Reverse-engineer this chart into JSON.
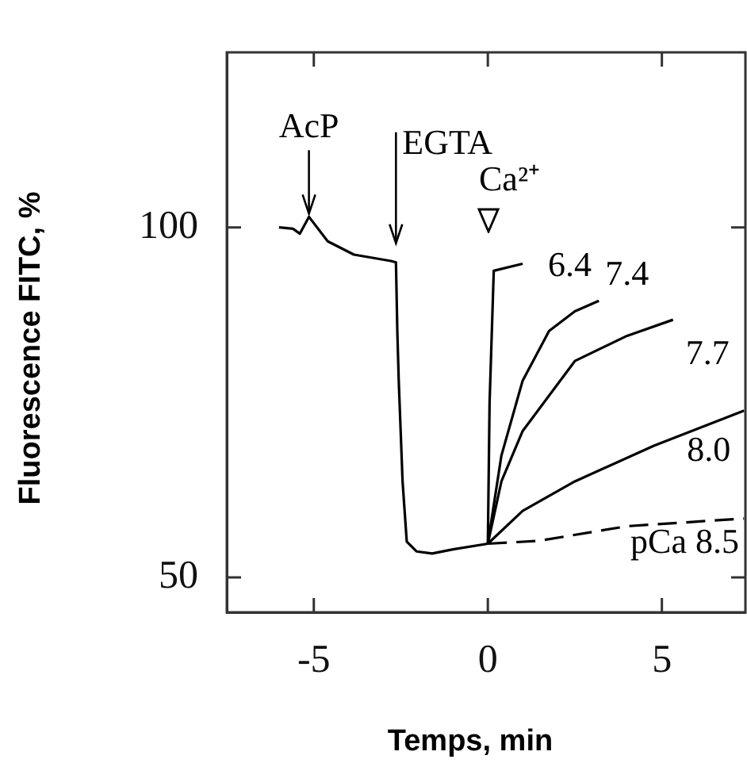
{
  "chart_data": {
    "type": "line",
    "xlabel": "Temps, min",
    "ylabel": "Fluorescence FITC, %",
    "xlim": [
      -7.5,
      7.4
    ],
    "ylim": [
      45,
      125
    ],
    "xticks": [
      -5,
      0,
      5
    ],
    "yticks": [
      50,
      100
    ],
    "grid": false,
    "legend": false,
    "marker": "none",
    "series": [
      {
        "color": "#000000",
        "x": [
          -6,
          -5.6,
          -5.4,
          -5.14,
          -4.6,
          -3.85,
          -2.79,
          -2.64,
          -2.6,
          -2.56,
          -2.45,
          -2.33,
          -2.05,
          -1.6,
          -1,
          0
        ],
        "values": [
          100,
          99.8,
          99.1,
          101.5,
          98,
          96.1,
          95.2,
          95,
          85,
          78.1,
          63.7,
          55.1,
          53.7,
          53.4,
          54,
          54.8
        ]
      },
      {
        "name": "6.4",
        "color": "#000000",
        "x": [
          0,
          0.05,
          0.17,
          1.0
        ],
        "values": [
          54.8,
          75,
          93.8,
          94.8
        ]
      },
      {
        "name": "7.4",
        "color": "#000000",
        "x": [
          0,
          0.39,
          1.0,
          1.76,
          2.5,
          3.19
        ],
        "values": [
          54.8,
          67.4,
          78.1,
          85.2,
          88,
          89.5
        ]
      },
      {
        "name": "7.7",
        "color": "#000000",
        "x": [
          0,
          0.39,
          1.0,
          2.5,
          4,
          5.32
        ],
        "values": [
          54.8,
          63.7,
          70.9,
          80.9,
          84.5,
          86.8
        ]
      },
      {
        "name": "8.0",
        "color": "#000000",
        "x": [
          0,
          1.0,
          2.5,
          4.77,
          7.36
        ],
        "values": [
          54.8,
          59.5,
          63.7,
          68.8,
          73.8
        ]
      },
      {
        "name": "pCa 8.5",
        "color": "#000000",
        "line_style": "dashed",
        "x": [
          0,
          1.45,
          4.0,
          7.36
        ],
        "values": [
          54.8,
          55.2,
          57.3,
          58.4
        ]
      }
    ],
    "annotations": [
      {
        "text": "AcP",
        "x": -5.14,
        "y": 101.5
      },
      {
        "text": "EGTA",
        "x": -2.64,
        "y": 95
      },
      "Ca²⁺"
    ]
  }
}
